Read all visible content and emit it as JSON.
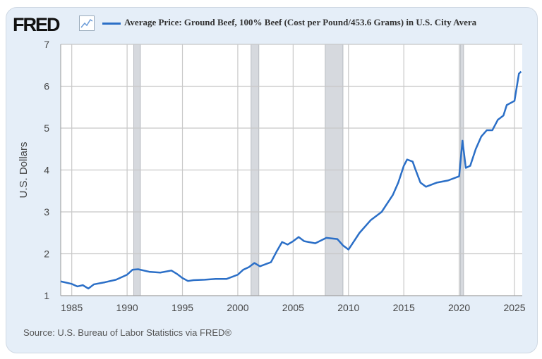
{
  "header": {
    "logo": "FRED",
    "logo_icon": "line-chart-icon",
    "title": "Average Price: Ground Beef, 100% Beef (Cost per Pound/453.6 Grams) in U.S. City Avera"
  },
  "source": "Source: U.S. Bureau of Labor Statistics via FRED®",
  "chart_data": {
    "type": "line",
    "title": "Average Price: Ground Beef, 100% Beef (Cost per Pound/453.6 Grams) in U.S. City Avera",
    "ylabel": "U.S. Dollars",
    "xlabel": "",
    "xlim": [
      1984,
      2025.7
    ],
    "ylim": [
      1,
      7
    ],
    "xticks": [
      "1985",
      "1990",
      "1995",
      "2000",
      "2005",
      "2010",
      "2015",
      "2020",
      "2025"
    ],
    "yticks": [
      "1",
      "2",
      "3",
      "4",
      "5",
      "6",
      "7"
    ],
    "grid": true,
    "line_color": "#2b6fc7",
    "recessions": [
      [
        1990.6,
        1991.2
      ],
      [
        2001.2,
        2001.9
      ],
      [
        2007.9,
        2009.5
      ],
      [
        2020.1,
        2020.4
      ]
    ],
    "series": [
      {
        "name": "Average Price: Ground Beef, 100% Beef (Cost per Pound/453.6 Grams) in U.S. City Avera",
        "x": [
          1984.0,
          1985,
          1985.5,
          1986,
          1986.5,
          1987,
          1988,
          1989,
          1990,
          1990.5,
          1991,
          1992,
          1993,
          1994,
          1994.5,
          1995,
          1995.5,
          1996,
          1997,
          1998,
          1999,
          2000,
          2000.5,
          2001,
          2001.5,
          2002,
          2003,
          2003.5,
          2004,
          2004.5,
          2005,
          2005.5,
          2006,
          2007,
          2008,
          2009,
          2009.5,
          2010,
          2010.5,
          2011,
          2012,
          2013,
          2013.5,
          2014,
          2014.5,
          2015,
          2015.3,
          2015.8,
          2016,
          2016.5,
          2017,
          2018,
          2019,
          2020,
          2020.3,
          2020.6,
          2021,
          2021.5,
          2022,
          2022.5,
          2023,
          2023.5,
          2024,
          2024.3,
          2025,
          2025.4,
          2025.6
        ],
        "y": [
          1.34,
          1.28,
          1.22,
          1.25,
          1.17,
          1.27,
          1.32,
          1.38,
          1.5,
          1.62,
          1.63,
          1.57,
          1.55,
          1.6,
          1.52,
          1.42,
          1.35,
          1.37,
          1.38,
          1.4,
          1.4,
          1.5,
          1.62,
          1.68,
          1.78,
          1.7,
          1.8,
          2.05,
          2.28,
          2.22,
          2.3,
          2.4,
          2.3,
          2.25,
          2.38,
          2.35,
          2.2,
          2.1,
          2.3,
          2.5,
          2.8,
          3.0,
          3.2,
          3.4,
          3.7,
          4.1,
          4.25,
          4.2,
          4.05,
          3.7,
          3.6,
          3.7,
          3.75,
          3.85,
          4.7,
          4.05,
          4.1,
          4.5,
          4.8,
          4.95,
          4.95,
          5.2,
          5.3,
          5.55,
          5.65,
          6.3,
          6.35
        ]
      }
    ]
  }
}
